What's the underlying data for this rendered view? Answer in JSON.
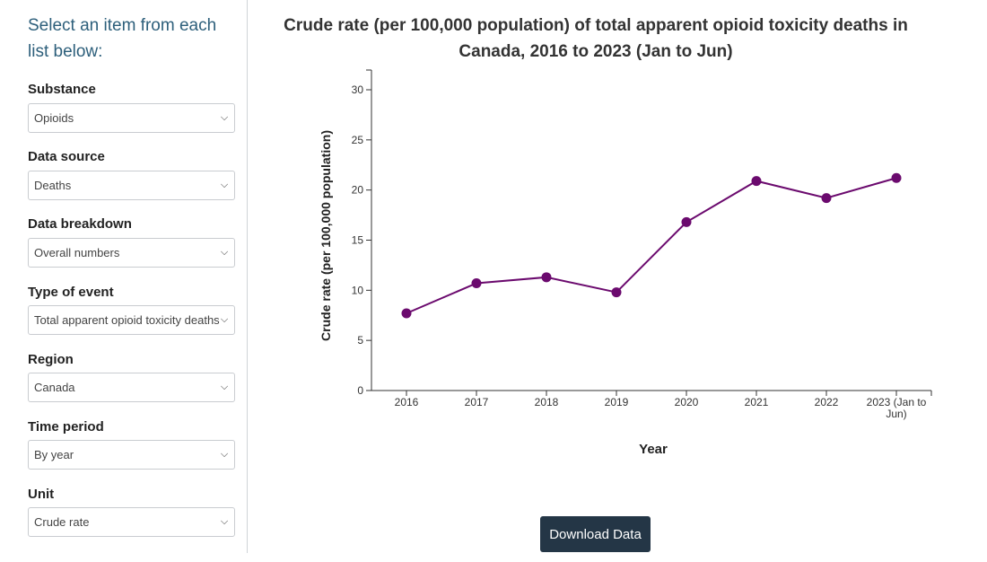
{
  "sidebar": {
    "intro": "Select an item from each list below:",
    "fields": [
      {
        "label": "Substance",
        "value": "Opioids"
      },
      {
        "label": "Data source",
        "value": "Deaths"
      },
      {
        "label": "Data breakdown",
        "value": "Overall numbers"
      },
      {
        "label": "Type of event",
        "value": "Total apparent opioid toxicity deaths"
      },
      {
        "label": "Region",
        "value": "Canada"
      },
      {
        "label": "Time period",
        "value": "By year"
      },
      {
        "label": "Unit",
        "value": "Crude rate"
      }
    ]
  },
  "download_label": "Download Data",
  "colors": {
    "series": "#6b0a6e",
    "accent": "#2d5f7b",
    "button": "#243646"
  },
  "chart_data": {
    "type": "line",
    "title": "Crude rate (per 100,000 population) of total apparent opioid toxicity deaths in Canada, 2016 to 2023 (Jan to Jun)",
    "xlabel": "Year",
    "ylabel": "Crude rate (per 100,000 population)",
    "categories": [
      "2016",
      "2017",
      "2018",
      "2019",
      "2020",
      "2021",
      "2022",
      "2023 (Jan to Jun)"
    ],
    "series": [
      {
        "values": [
          7.7,
          10.7,
          11.3,
          9.8,
          16.8,
          20.9,
          19.2,
          21.2
        ]
      }
    ],
    "ylim": [
      0,
      30
    ],
    "yticks": [
      0,
      5,
      10,
      15,
      20,
      25,
      30
    ],
    "grid": false
  }
}
